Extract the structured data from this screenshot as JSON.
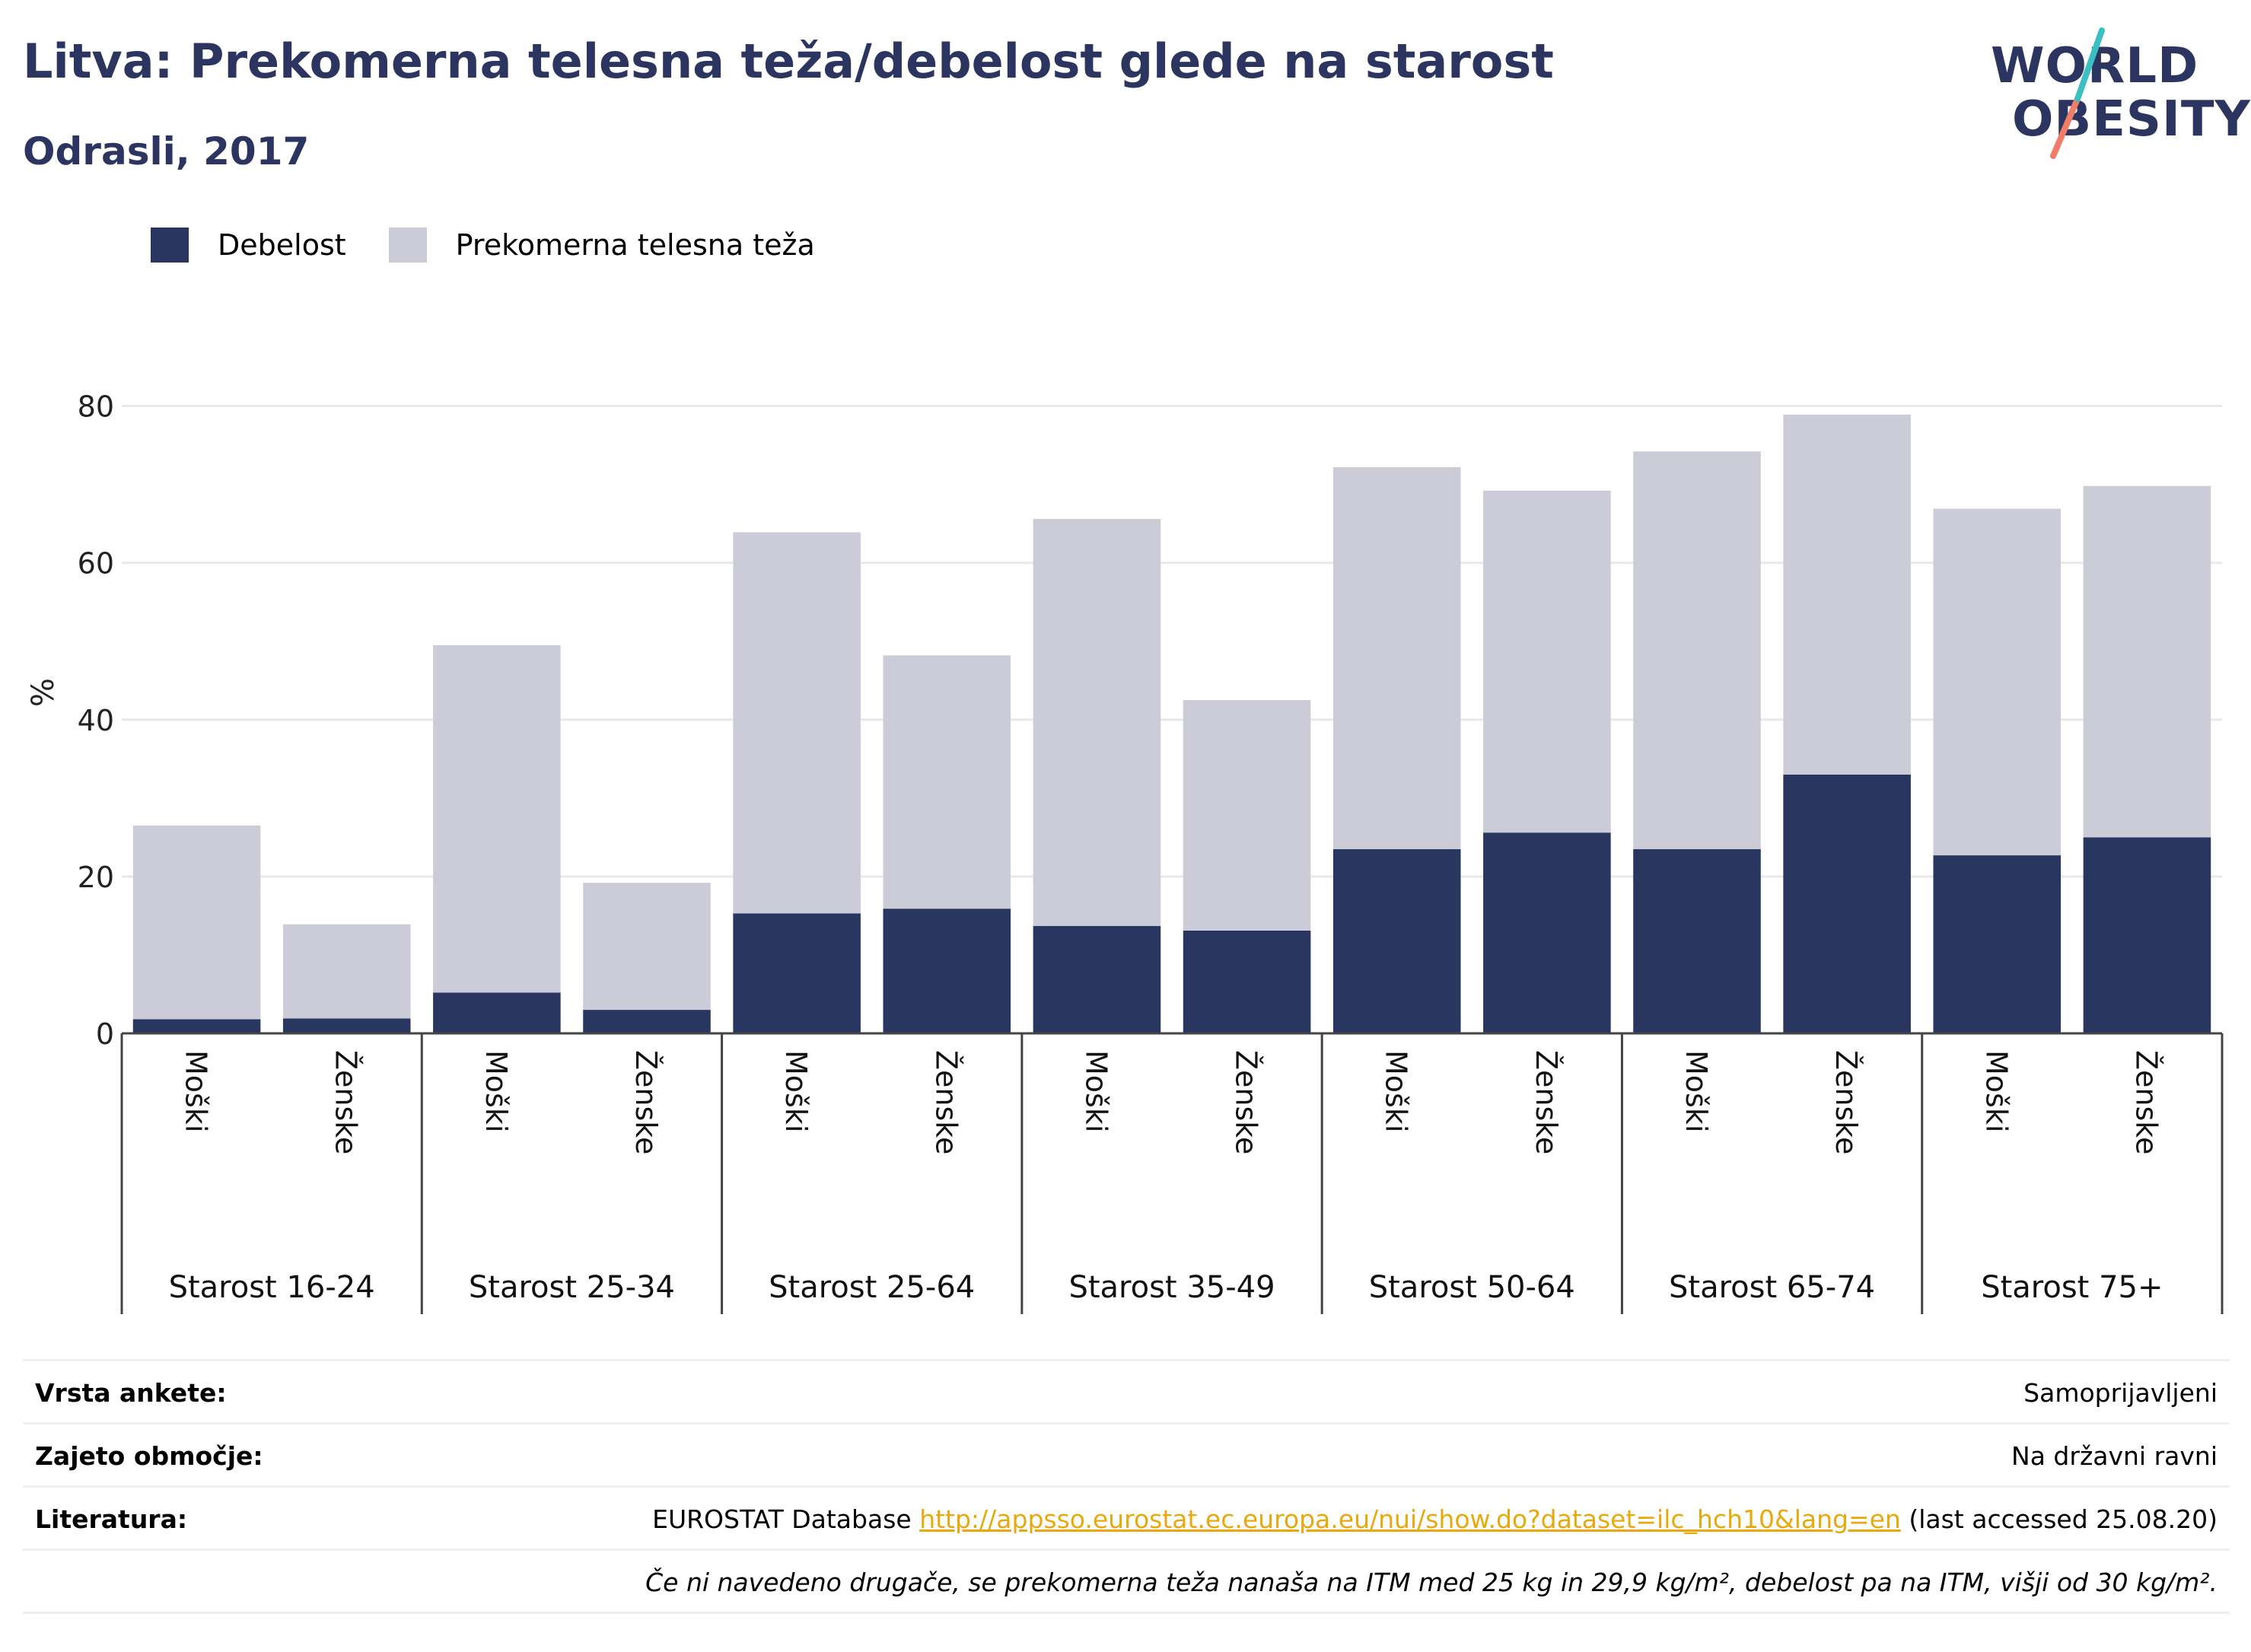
{
  "title": "Litva: Prekomerna telesna teža/debelost glede na starost",
  "subtitle": "Odrasli, 2017",
  "logo": {
    "line1": "WORLD",
    "line2": "OBESITY"
  },
  "legend": [
    {
      "label": "Debelost",
      "color": "#29365f"
    },
    {
      "label": "Prekomerna telesna teža",
      "color": "#cbccd8"
    }
  ],
  "chart_data": {
    "type": "bar",
    "stacked": true,
    "ylabel": "%",
    "ylim": [
      0,
      85
    ],
    "yticks": [
      0,
      20,
      40,
      60,
      80
    ],
    "grid": true,
    "legend_position": "top-left",
    "groups": [
      "Starost 16-24",
      "Starost 25-34",
      "Starost 25-64",
      "Starost 35-49",
      "Starost 50-64",
      "Starost 65-74",
      "Starost 75+"
    ],
    "sexes": [
      "Moški",
      "Ženske"
    ],
    "series": [
      {
        "name": "Debelost",
        "color": "#29365f",
        "values": [
          1.8,
          1.9,
          5.2,
          3.0,
          15.3,
          15.9,
          13.7,
          13.1,
          23.5,
          25.6,
          23.5,
          33.0,
          22.7,
          25.0
        ]
      },
      {
        "name": "Prekomerna telesna teža",
        "color": "#cbccd8",
        "values": [
          24.7,
          12.0,
          44.3,
          16.2,
          48.6,
          32.3,
          51.9,
          29.4,
          48.7,
          43.6,
          50.7,
          45.9,
          44.2,
          44.8
        ]
      }
    ]
  },
  "info": {
    "survey_label": "Vrsta ankete:",
    "survey_value": "Samoprijavljeni",
    "coverage_label": "Zajeto območje:",
    "coverage_value": "Na državni ravni",
    "literature_label": "Literatura:",
    "literature_prefix": "EUROSTAT Database ",
    "literature_link": "http://appsso.eurostat.ec.europa.eu/nui/show.do?dataset=ilc_hch10&lang=en",
    "literature_suffix": " (last accessed 25.08.20)",
    "note": "Če ni navedeno drugače, se prekomerna teža nanaša na ITM med 25 kg in 29,9 kg/m², debelost pa na ITM, višji od 30 kg/m²."
  }
}
